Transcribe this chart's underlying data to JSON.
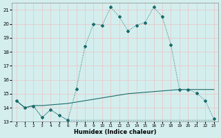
{
  "xlabel": "Humidex (Indice chaleur)",
  "bg_color": "#d4eeee",
  "grid_color": "#e8c8c8",
  "line_color": "#1a6b6b",
  "xlim": [
    -0.5,
    23.5
  ],
  "ylim": [
    13,
    21.5
  ],
  "xticks": [
    0,
    1,
    2,
    3,
    4,
    5,
    6,
    7,
    8,
    9,
    10,
    11,
    12,
    13,
    14,
    15,
    16,
    17,
    18,
    19,
    20,
    21,
    22,
    23
  ],
  "yticks": [
    13,
    14,
    15,
    16,
    17,
    18,
    19,
    20,
    21
  ],
  "line1_x": [
    0,
    1,
    2,
    3,
    4,
    5,
    6,
    7,
    8,
    9,
    10,
    11,
    12,
    13,
    14,
    15,
    16,
    17,
    18,
    19,
    20,
    21,
    22,
    23
  ],
  "line1_y": [
    14.5,
    14.0,
    14.1,
    13.3,
    13.85,
    13.45,
    13.1,
    15.35,
    18.4,
    20.0,
    19.9,
    21.2,
    20.5,
    19.5,
    19.9,
    20.1,
    21.2,
    20.5,
    18.5,
    15.3,
    15.3,
    15.05,
    14.5,
    13.2
  ],
  "line2_x": [
    0,
    1,
    2,
    3,
    4,
    5,
    6,
    7,
    8,
    9,
    10,
    11,
    12,
    13,
    14,
    15,
    16,
    17,
    18,
    19,
    20,
    21,
    22,
    23
  ],
  "line2_y": [
    14.5,
    14.0,
    14.15,
    14.15,
    14.2,
    14.25,
    14.3,
    14.4,
    14.5,
    14.6,
    14.7,
    14.8,
    14.9,
    15.0,
    15.05,
    15.1,
    15.15,
    15.2,
    15.25,
    15.3,
    15.3,
    15.3,
    15.3,
    15.3
  ],
  "line3_x": [
    0,
    1,
    2,
    3,
    4,
    5,
    6,
    7,
    8,
    9,
    10,
    11,
    12,
    13,
    14,
    15,
    16,
    17,
    18,
    19,
    20,
    21,
    22,
    23
  ],
  "line3_y": [
    14.5,
    14.0,
    14.15,
    13.3,
    13.85,
    13.45,
    13.1,
    13.1,
    13.1,
    13.1,
    13.1,
    13.1,
    13.1,
    13.1,
    13.1,
    13.1,
    13.1,
    13.1,
    13.1,
    13.1,
    13.1,
    13.1,
    13.1,
    13.1
  ]
}
